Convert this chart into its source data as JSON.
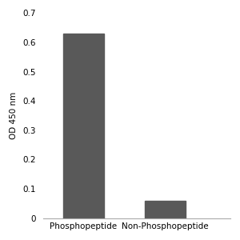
{
  "categories": [
    "Phosphopeptide",
    "Non-Phosphopeptide"
  ],
  "values": [
    0.63,
    0.058
  ],
  "bar_color": "#595959",
  "ylabel": "OD 450 nm",
  "ylim": [
    0,
    0.7
  ],
  "yticks": [
    0,
    0.1,
    0.2,
    0.3,
    0.4,
    0.5,
    0.6,
    0.7
  ],
  "ytick_labels": [
    "0",
    "0.1",
    "0.2",
    "0.3",
    "0.4",
    "0.5",
    "0.6",
    "0.7"
  ],
  "background_color": "#ffffff",
  "bar_width": 0.5,
  "tick_label_fontsize": 7.5,
  "ylabel_fontsize": 7.5,
  "xlim": [
    -0.5,
    1.8
  ]
}
